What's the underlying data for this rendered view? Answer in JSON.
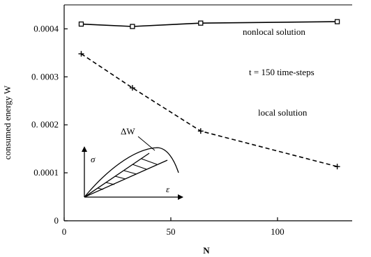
{
  "chart_data": {
    "type": "line",
    "title": "",
    "xlabel": "N",
    "ylabel": "consumed energy W",
    "xlim": [
      0,
      135
    ],
    "ylim": [
      0,
      0.00045
    ],
    "xticks": [
      0,
      50,
      100
    ],
    "xtick_labels": [
      "0",
      "50",
      "100"
    ],
    "yticks": [
      0,
      0.0001,
      0.0002,
      0.0003,
      0.0004
    ],
    "ytick_labels": [
      "0",
      "0.0001",
      "0. 0002",
      "0. 0003",
      "0.0004"
    ],
    "grid": false,
    "series": [
      {
        "name": "nonlocal solution",
        "style": "solid",
        "marker": "square",
        "x": [
          8,
          32,
          64,
          128
        ],
        "y": [
          0.00041,
          0.000405,
          0.000412,
          0.000415
        ]
      },
      {
        "name": "local solution",
        "style": "dashed",
        "marker": "plus",
        "x": [
          8,
          32,
          64,
          128
        ],
        "y": [
          0.000348,
          0.000277,
          0.000187,
          0.000113
        ]
      }
    ],
    "annotations": {
      "nonlocal": "nonlocal solution",
      "timesteps": "t = 150 time-steps",
      "local": "local solution",
      "inset_dw": "ΔW",
      "inset_sigma": "σ",
      "inset_eps": "ε"
    }
  }
}
